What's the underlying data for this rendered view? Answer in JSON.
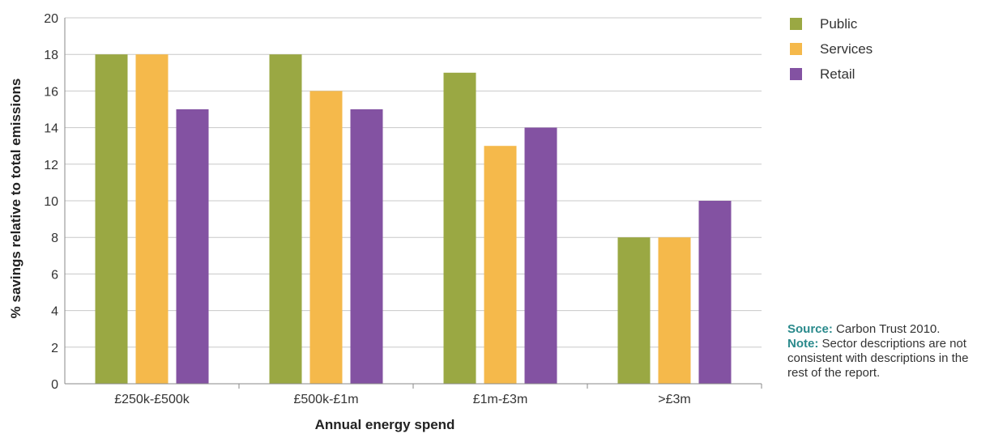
{
  "chart_data": {
    "type": "bar",
    "categories": [
      "£250k-£500k",
      "£500k-£1m",
      "£1m-£3m",
      ">£3m"
    ],
    "series": [
      {
        "name": "Public",
        "color": "#9aa843",
        "values": [
          18,
          18,
          17,
          8
        ]
      },
      {
        "name": "Services",
        "color": "#f5b94b",
        "values": [
          18,
          16,
          13,
          8
        ]
      },
      {
        "name": "Retail",
        "color": "#8352a2",
        "values": [
          15,
          15,
          14,
          10
        ]
      }
    ],
    "yticks": [
      "0",
      "2",
      "4",
      "6",
      "8",
      "10",
      "12",
      "14",
      "16",
      "18",
      "20"
    ],
    "ylim": [
      0,
      20
    ],
    "xlabel": "Annual energy spend",
    "ylabel": "% savings relative to total emissions",
    "grid": true,
    "legend_position": "top-right"
  },
  "notes": {
    "source_label": "Source:",
    "source_text": "Carbon Trust 2010.",
    "note_label": "Note:",
    "note_text": "Sector descriptions are not consistent with descriptions in the rest of the report."
  }
}
